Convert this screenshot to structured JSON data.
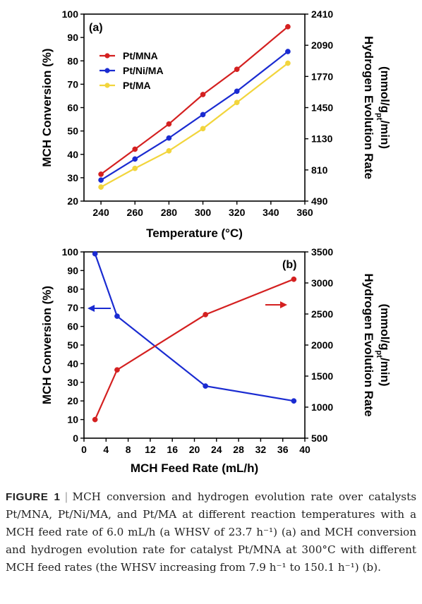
{
  "colors": {
    "red": "#d42020",
    "blue": "#1a2bd1",
    "yellow": "#f2d53c",
    "axis": "#000000"
  },
  "chart_data": [
    {
      "type": "line",
      "panel_label": "(a)",
      "xlabel": "Temperature (°C)",
      "ylabel": "MCH Conversion (%)",
      "ylabel_right": "Hydrogen Evolution Rate",
      "ylabel_right_unit_parts": [
        "(mmol/g",
        "pt",
        "/min)"
      ],
      "xlim": [
        230,
        360
      ],
      "ylim": [
        20,
        100
      ],
      "ylim_right": [
        490,
        2410
      ],
      "xticks": [
        240,
        260,
        280,
        300,
        320,
        340,
        360
      ],
      "yticks": [
        20,
        30,
        40,
        50,
        60,
        70,
        80,
        90,
        100
      ],
      "yticks_right": [
        490,
        810,
        1130,
        1450,
        1770,
        2090,
        2410
      ],
      "x": [
        240,
        260,
        280,
        300,
        320,
        350
      ],
      "legend_position": "top-left",
      "series": [
        {
          "name": "Pt/MNA",
          "color": "red",
          "values": [
            31.5,
            42.2,
            53.0,
            65.6,
            76.4,
            94.6
          ]
        },
        {
          "name": "Pt/Ni/MA",
          "color": "blue",
          "values": [
            29.0,
            38.0,
            47.0,
            57.0,
            67.0,
            84.0
          ]
        },
        {
          "name": "Pt/MA",
          "color": "yellow",
          "values": [
            26.0,
            34.0,
            41.5,
            51.0,
            62.2,
            79.0
          ]
        }
      ]
    },
    {
      "type": "line",
      "panel_label": "(b)",
      "xlabel": "MCH Feed Rate (mL/h)",
      "ylabel": "MCH Conversion (%)",
      "ylabel_right": "Hydrogen Evolution Rate",
      "ylabel_right_unit_parts": [
        "(mmol/g",
        "pt",
        "/min)"
      ],
      "xlim": [
        0,
        40
      ],
      "ylim": [
        0,
        100
      ],
      "ylim_right": [
        500,
        3500
      ],
      "xticks": [
        0,
        4,
        8,
        12,
        16,
        20,
        24,
        28,
        32,
        36,
        40
      ],
      "yticks": [
        0,
        10,
        20,
        30,
        40,
        50,
        60,
        70,
        80,
        90,
        100
      ],
      "yticks_right": [
        500,
        1000,
        1500,
        2000,
        2500,
        3000,
        3500
      ],
      "x": [
        2,
        6,
        22,
        38
      ],
      "series": [
        {
          "color": "blue",
          "axis": "left",
          "values": [
            99,
            65.5,
            28,
            20
          ]
        },
        {
          "color": "red",
          "axis": "right",
          "values": [
            800,
            1600,
            2490,
            3060
          ]
        }
      ],
      "annotations": [
        {
          "type": "arrow",
          "direction": "left",
          "color": "blue",
          "target_axis": "left"
        },
        {
          "type": "arrow",
          "direction": "right",
          "color": "red",
          "target_axis": "right"
        }
      ]
    }
  ],
  "caption": {
    "label": "FIGURE 1",
    "separator": "|",
    "text": "MCH conversion and hydrogen evolution rate over catalysts Pt/MNA, Pt/Ni/MA, and Pt/MA at different reaction temperatures with a MCH feed rate of 6.0 mL/h (a WHSV of 23.7 h⁻¹) (a) and MCH conversion and hydrogen evolution rate for catalyst Pt/MNA at 300°C with different MCH feed rates (the WHSV increasing from 7.9 h⁻¹ to 150.1 h⁻¹) (b)."
  }
}
